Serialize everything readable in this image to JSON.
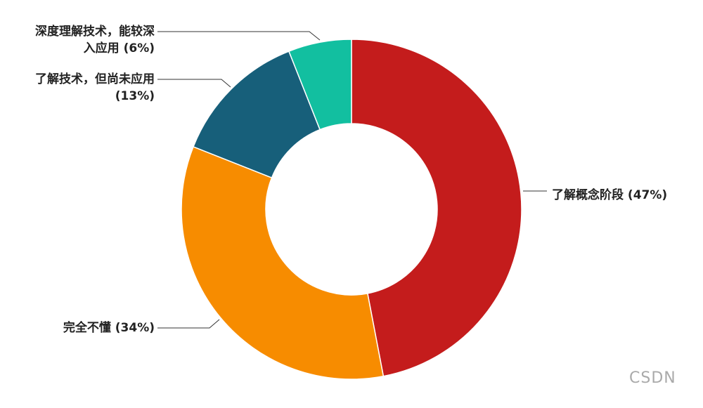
{
  "chart_data": {
    "type": "donut",
    "categories": [
      "了解概念阶段",
      "完全不懂",
      "了解技术，但尚未应用",
      "深度理解技术，能较深入应用"
    ],
    "values": [
      47,
      34,
      13,
      6
    ],
    "value_labels": [
      "(47%)",
      "(34%)",
      "(13%)",
      "(6%)"
    ],
    "colors": [
      "#c41c1c",
      "#f78c00",
      "#175f7a",
      "#12bfa0"
    ]
  },
  "watermark": "CSDN"
}
